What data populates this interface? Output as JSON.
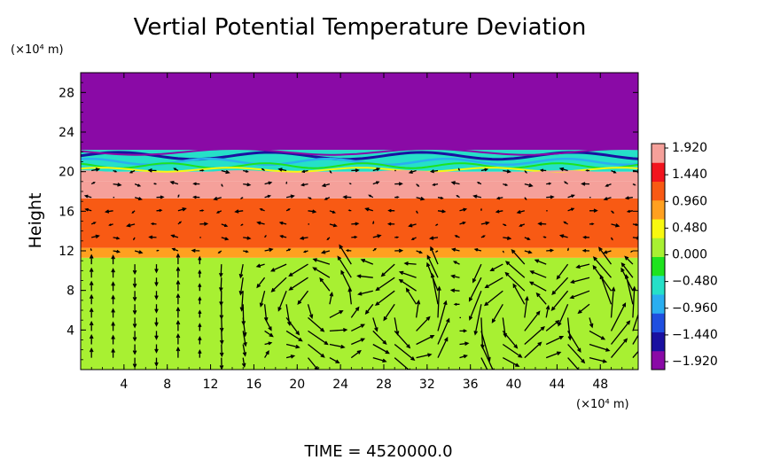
{
  "chart_data": {
    "type": "heatmap",
    "title": "Vertial Potential Temperature Deviation",
    "ylabel": "Height",
    "y_unit": "(×10⁴ m)",
    "x_unit": "(×10⁴ m)",
    "xlim": [
      0,
      51.5
    ],
    "ylim": [
      0,
      30
    ],
    "x_ticks": [
      "4",
      "8",
      "12",
      "16",
      "20",
      "24",
      "28",
      "32",
      "36",
      "40",
      "44",
      "48"
    ],
    "y_ticks": [
      "4",
      "8",
      "12",
      "16",
      "20",
      "24",
      "28"
    ],
    "colorbar": {
      "range": [
        -1.92,
        1.92
      ],
      "tick_labels": [
        "1.920",
        "1.440",
        "0.960",
        "0.480",
        "0.000",
        "−0.480",
        "−0.960",
        "−1.440",
        "−1.920"
      ],
      "colors": [
        "#8a0aa6",
        "#1a10a0",
        "#1f4fe0",
        "#2aaef0",
        "#25e0c8",
        "#1ee31e",
        "#a8f032",
        "#f8f810",
        "#ffa020",
        "#f85a14",
        "#f2141e",
        "#f5a09a"
      ]
    },
    "bands": [
      {
        "y_from": 0,
        "y_to": 11.3,
        "value": 0.0
      },
      {
        "y_from": 11.3,
        "y_to": 12.3,
        "value": 0.8
      },
      {
        "y_from": 12.3,
        "y_to": 15.0,
        "value": 0.96
      },
      {
        "y_from": 15.0,
        "y_to": 17.3,
        "value": 1.2
      },
      {
        "y_from": 17.3,
        "y_to": 19.0,
        "value": 1.6
      },
      {
        "y_from": 19.0,
        "y_to": 20.0,
        "value": 1.92
      },
      {
        "y_from": 20.0,
        "y_to": 22.2,
        "value": -0.5
      },
      {
        "y_from": 22.2,
        "y_to": 30,
        "value": -1.92
      }
    ],
    "circulation_cells": [
      {
        "x": 21,
        "y": 7
      },
      {
        "x": 29.5,
        "y": 5.5
      },
      {
        "x": 40,
        "y": 5.5
      },
      {
        "x": 48,
        "y": 5.5
      }
    ]
  },
  "footer": {
    "time_label": "TIME = 4520000.0"
  }
}
